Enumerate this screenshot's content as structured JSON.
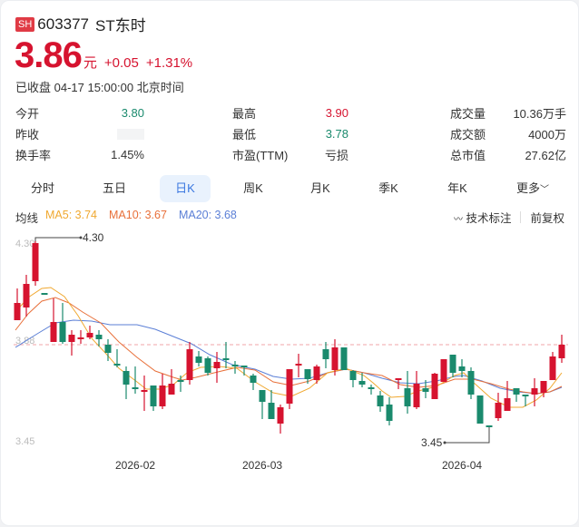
{
  "header": {
    "exchange": "SH",
    "code": "603377",
    "name": "ST东时",
    "price": "3.86",
    "unit": "元",
    "change": "+0.05",
    "change_pct": "+1.31%",
    "status": "已收盘 04-17 15:00:00 北京时间"
  },
  "stats": {
    "col1": [
      {
        "label": "今开",
        "value": "3.80",
        "color": "green"
      },
      {
        "label": "昨收",
        "value": "",
        "color": "blur"
      },
      {
        "label": "换手率",
        "value": "1.45%",
        "color": "normal"
      }
    ],
    "col2": [
      {
        "label": "最高",
        "value": "3.90",
        "color": "red"
      },
      {
        "label": "最低",
        "value": "3.78",
        "color": "green"
      },
      {
        "label": "市盈(TTM)",
        "value": "亏损",
        "color": "normal"
      }
    ],
    "col3": [
      {
        "label": "成交量",
        "value": "10.36万手"
      },
      {
        "label": "成交额",
        "value": "4000万"
      },
      {
        "label": "总市值",
        "value": "27.62亿"
      }
    ]
  },
  "tabs": [
    {
      "label": "分时"
    },
    {
      "label": "五日"
    },
    {
      "label": "日K",
      "active": true
    },
    {
      "label": "周K"
    },
    {
      "label": "月K"
    },
    {
      "label": "季K"
    },
    {
      "label": "年K"
    },
    {
      "label": "更多"
    }
  ],
  "ma": {
    "label": "均线",
    "ma5": "MA5: 3.74",
    "ma10": "MA10: 3.67",
    "ma20": "MA20: 3.68",
    "colors": {
      "ma5": "#f0a830",
      "ma10": "#e8703a",
      "ma20": "#5b7fd6"
    }
  },
  "tools": {
    "annotate": "技术标注",
    "adjust": "前复权"
  },
  "chart_data": {
    "type": "candlestick",
    "y_labels": [
      "4.30",
      "3.88",
      "3.45"
    ],
    "x_labels": [
      "2026-02",
      "2026-03",
      "2026-04"
    ],
    "max_marker": "4.30",
    "min_marker": "3.45",
    "colors": {
      "up": "#d6132f",
      "down": "#1a8a6d"
    }
  }
}
